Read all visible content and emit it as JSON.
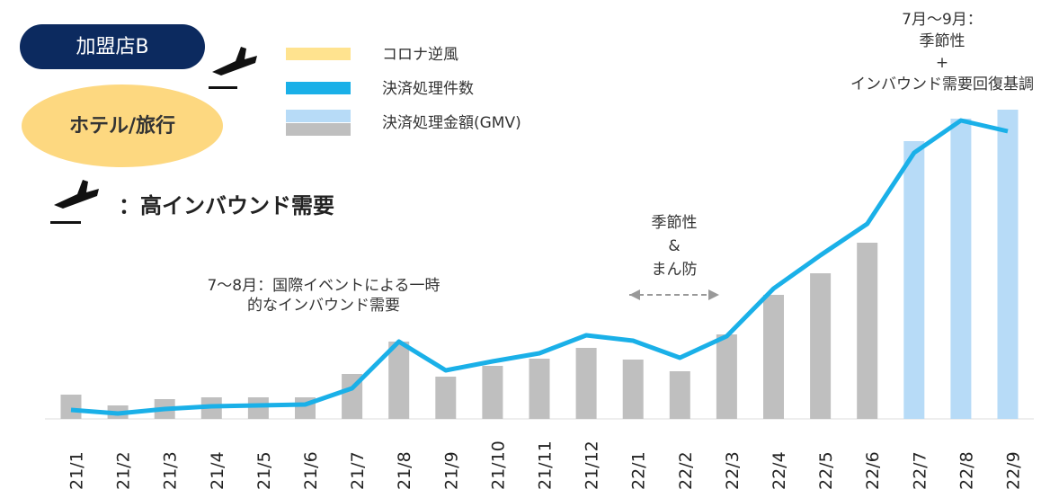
{
  "chart_data": {
    "type": "bar_line",
    "store_label": "加盟店B",
    "category_label": "ホテル/旅行",
    "icon_legend": "：高インバウンド需要",
    "categories": [
      "21/1",
      "21/2",
      "21/3",
      "21/4",
      "21/5",
      "21/6",
      "21/7",
      "21/8",
      "21/9",
      "21/10",
      "21/11",
      "21/12",
      "22/1",
      "22/2",
      "22/3",
      "22/4",
      "22/5",
      "22/6",
      "22/7",
      "22/8",
      "22/9"
    ],
    "series": [
      {
        "name": "決済処理金額(GMV)",
        "type": "bar",
        "colors": [
          "#bfbfbf",
          "#bfbfbf",
          "#bfbfbf",
          "#bfbfbf",
          "#bfbfbf",
          "#bfbfbf",
          "#bfbfbf",
          "#bfbfbf",
          "#bfbfbf",
          "#bfbfbf",
          "#bfbfbf",
          "#bfbfbf",
          "#bfbfbf",
          "#bfbfbf",
          "#bfbfbf",
          "#bfbfbf",
          "#bfbfbf",
          "#bfbfbf",
          "#b7dbf7",
          "#b7dbf7",
          "#b7dbf7"
        ],
        "values": [
          27,
          15,
          22,
          24,
          24,
          24,
          50,
          86,
          47,
          59,
          67,
          79,
          66,
          53,
          94,
          138,
          162,
          196,
          309,
          334,
          344
        ]
      },
      {
        "name": "決済処理件数",
        "type": "line",
        "color": "#1ab0e8",
        "values": [
          10,
          6,
          11,
          14,
          15,
          16,
          34,
          86,
          54,
          64,
          73,
          93,
          87,
          68,
          92,
          145,
          182,
          217,
          296,
          332,
          320
        ]
      }
    ],
    "legend_extra": {
      "name": "コロナ逆風",
      "color": "#ffe38f"
    },
    "ylim": [
      0,
      350
    ],
    "annotations": [
      {
        "lines": [
          "7〜8月：国際イベントによる一時",
          "的なインバウンド需要"
        ]
      },
      {
        "lines": [
          "季節性",
          "&",
          "まん防"
        ]
      },
      {
        "lines": [
          "7月〜9月：",
          "季節性",
          "+",
          "インバウンド需要回復基調"
        ]
      }
    ]
  }
}
